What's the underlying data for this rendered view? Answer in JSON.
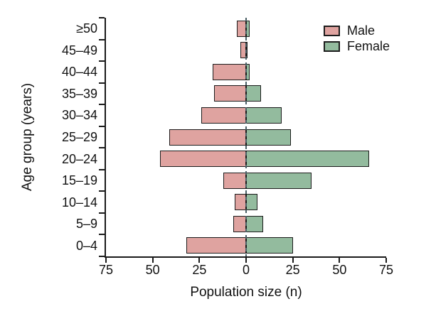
{
  "chart_data": {
    "type": "bar",
    "subtype": "population-pyramid",
    "orientation": "horizontal",
    "title": "",
    "xlabel": "Population size (n)",
    "ylabel": "Age group (years)",
    "categories_top_to_bottom": [
      "≥50",
      "45–49",
      "40–44",
      "35–39",
      "30–34",
      "25–29",
      "20–24",
      "15–19",
      "10–14",
      "5–9",
      "0–4"
    ],
    "series": [
      {
        "name": "Male",
        "side": "left",
        "color": "#dfa3a0",
        "values": [
          5,
          3,
          18,
          17,
          24,
          41,
          46,
          12,
          6,
          7,
          32
        ]
      },
      {
        "name": "Female",
        "side": "right",
        "color": "#93bb9e",
        "values": [
          2,
          0.5,
          2,
          8,
          19,
          24,
          66,
          35,
          6,
          9,
          25
        ]
      }
    ],
    "x_axis": {
      "range": [
        -75,
        75
      ],
      "tick_values": [
        -75,
        -50,
        -25,
        0,
        25,
        50,
        75
      ],
      "tick_labels": [
        "75",
        "50",
        "25",
        "0",
        "25",
        "50",
        "75"
      ]
    },
    "zero_line": {
      "style": "dashed",
      "color": "#4a5f66"
    },
    "bar_outline_color": "#1c1c1c",
    "axis_color": "#1a1a1a",
    "grid": false,
    "legend_position": "top-right",
    "legend": [
      {
        "label": "Male",
        "color": "#dfa3a0"
      },
      {
        "label": "Female",
        "color": "#93bb9e"
      }
    ]
  }
}
